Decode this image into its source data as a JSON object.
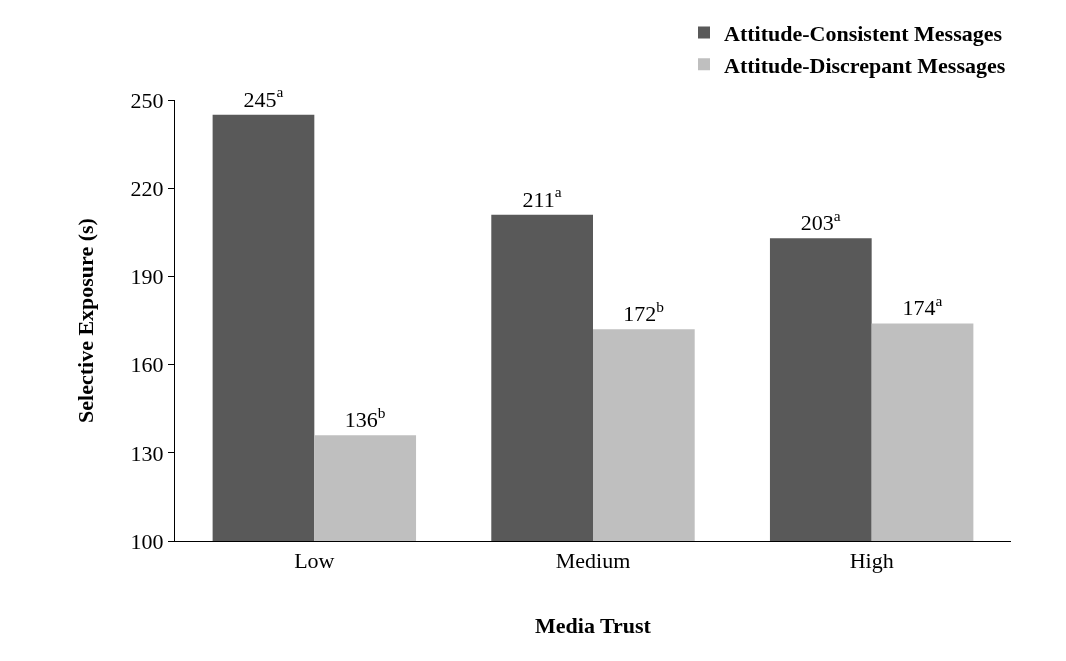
{
  "chart_data": {
    "type": "bar",
    "xlabel": "Media Trust",
    "ylabel": "Selective Exposure (s)",
    "categories": [
      "Low",
      "Medium",
      "High"
    ],
    "series": [
      {
        "name": "Attitude-Consistent Messages",
        "color": "#595959",
        "values": [
          245,
          211,
          203
        ],
        "value_labels": [
          "245$^{a}$",
          "211$^{a}$",
          "203$^{a}$"
        ]
      },
      {
        "name": "Attitude-Discrepant Messages",
        "color": "#bfbfbf",
        "values": [
          136,
          172,
          174
        ],
        "value_labels": [
          "136$^{b}$",
          "172$^{b}$",
          "174$^{a}$"
        ]
      }
    ],
    "ylim": [
      100,
      250
    ],
    "yticks": [
      100,
      130,
      160,
      190,
      220,
      250
    ],
    "grid": false,
    "legend": "top right"
  }
}
